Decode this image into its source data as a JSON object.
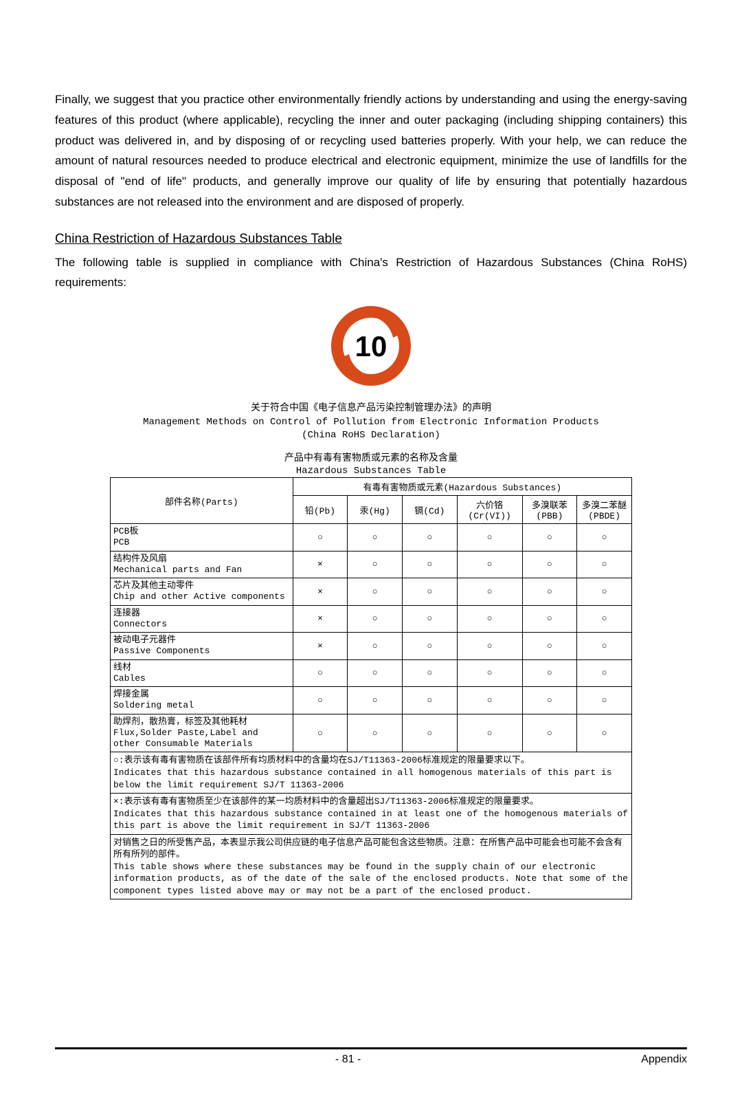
{
  "intro_paragraph": "Finally, we suggest that you practice other environmentally friendly actions by understanding and using the energy-saving features of this product (where applicable), recycling the inner and outer packaging (including shipping containers) this product was delivered in, and by disposing of or recycling used batteries properly. With your help, we can reduce the amount of natural resources needed to produce electrical and electronic equipment, minimize the use of landfills for the disposal of \"end of life\" products, and generally improve our quality of life by ensuring that potentially hazardous substances are not released into the environment and are disposed of properly.",
  "section_title": "China Restriction of Hazardous Substances Table",
  "section_intro": "The following table is supplied in compliance with China's Restriction of Hazardous Substances (China RoHS) requirements:",
  "logo": {
    "number": "10",
    "ring_color": "#d84a1a",
    "arrow_color": "#d84a1a",
    "bg": "#ffffff"
  },
  "declaration": {
    "line1": "关于符合中国《电子信息产品污染控制管理办法》的声明",
    "line2": "Management Methods on Control of Pollution from Electronic Information Products",
    "line3": "(China RoHS Declaration)"
  },
  "table_caption": {
    "cn": "产品中有毒有害物质或元素的名称及含量",
    "en": "Hazardous Substances Table"
  },
  "table": {
    "type": "table",
    "parts_header": "部件名称(Parts)",
    "hazard_header": "有毒有害物质或元素(Hazardous Substances)",
    "columns": [
      {
        "l1": "铅(Pb)",
        "l2": ""
      },
      {
        "l1": "汞(Hg)",
        "l2": ""
      },
      {
        "l1": "镉(Cd)",
        "l2": ""
      },
      {
        "l1": "六价铬",
        "l2": "(Cr(VI))"
      },
      {
        "l1": "多溴联苯",
        "l2": "(PBB)"
      },
      {
        "l1": "多溴二苯醚",
        "l2": "(PBDE)"
      }
    ],
    "rows": [
      {
        "cn": "PCB板",
        "en": "PCB",
        "vals": [
          "○",
          "○",
          "○",
          "○",
          "○",
          "○"
        ]
      },
      {
        "cn": "结构件及风扇",
        "en": "Mechanical parts and Fan",
        "vals": [
          "×",
          "○",
          "○",
          "○",
          "○",
          "○"
        ]
      },
      {
        "cn": "芯片及其他主动零件",
        "en": "Chip and other Active components",
        "vals": [
          "×",
          "○",
          "○",
          "○",
          "○",
          "○"
        ]
      },
      {
        "cn": "连接器",
        "en": "Connectors",
        "vals": [
          "×",
          "○",
          "○",
          "○",
          "○",
          "○"
        ]
      },
      {
        "cn": "被动电子元器件",
        "en": "Passive Components",
        "vals": [
          "×",
          "○",
          "○",
          "○",
          "○",
          "○"
        ]
      },
      {
        "cn": "线材",
        "en": "Cables",
        "vals": [
          "○",
          "○",
          "○",
          "○",
          "○",
          "○"
        ]
      },
      {
        "cn": "焊接金属",
        "en": "Soldering metal",
        "vals": [
          "○",
          "○",
          "○",
          "○",
          "○",
          "○"
        ]
      },
      {
        "cn": "助焊剂，散热膏，标签及其他耗材",
        "en": "Flux,Solder Paste,Label and other Consumable Materials",
        "vals": [
          "○",
          "○",
          "○",
          "○",
          "○",
          "○"
        ]
      }
    ],
    "notes": [
      "○:表示该有毒有害物质在该部件所有均质材料中的含量均在SJ/T11363-2006标准规定的限量要求以下。\nIndicates that this hazardous substance contained in all homogenous materials of this part is below the limit requirement SJ/T 11363-2006",
      "×:表示该有毒有害物质至少在该部件的某一均质材料中的含量超出SJ/T11363-2006标准规定的限量要求。\nIndicates that this hazardous substance contained in at least one of the homogenous materials of this part is above the limit requirement in SJ/T 11363-2006",
      "对销售之日的所受售产品，本表显示我公司供应链的电子信息产品可能包含这些物质。注意：在所售产品中可能会也可能不会含有所有所列的部件。\nThis table shows where these substances may be found in the supply chain of our electronic information products, as of the date of the sale of the enclosed products. Note that some of the component types listed above may or may not be a part of the enclosed product."
    ]
  },
  "footer": {
    "page": "- 81 -",
    "section": "Appendix"
  }
}
